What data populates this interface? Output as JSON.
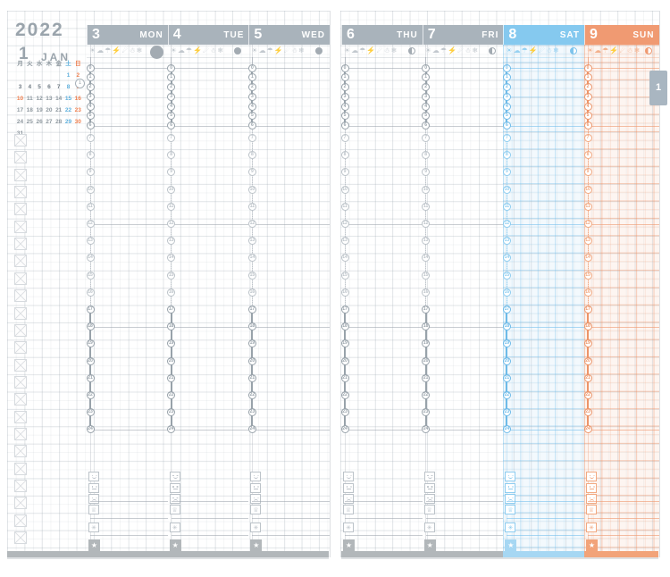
{
  "year": "2022",
  "month_number": "1",
  "month_name": "JAN",
  "week_tab_label": "1",
  "mini_calendar": {
    "day_headers": [
      {
        "label": "月",
        "c": "wd"
      },
      {
        "label": "火",
        "c": "wd"
      },
      {
        "label": "水",
        "c": "wd"
      },
      {
        "label": "木",
        "c": "wd"
      },
      {
        "label": "金",
        "c": "wd"
      },
      {
        "label": "土",
        "c": "sat"
      },
      {
        "label": "日",
        "c": "sun"
      }
    ],
    "weeks": [
      {
        "days": [
          {
            "d": "",
            "c": "wd"
          },
          {
            "d": "",
            "c": "wd"
          },
          {
            "d": "",
            "c": "wd"
          },
          {
            "d": "",
            "c": "wd"
          },
          {
            "d": "",
            "c": "wd"
          },
          {
            "d": "1",
            "c": "sat"
          },
          {
            "d": "2",
            "c": "sun"
          }
        ]
      },
      {
        "current": true,
        "week_label": "1",
        "days": [
          {
            "d": "3",
            "c": "wd"
          },
          {
            "d": "4",
            "c": "wd"
          },
          {
            "d": "5",
            "c": "wd"
          },
          {
            "d": "6",
            "c": "wd"
          },
          {
            "d": "7",
            "c": "wd"
          },
          {
            "d": "8",
            "c": "sat"
          },
          {
            "d": "9",
            "c": "sun"
          }
        ]
      },
      {
        "days": [
          {
            "d": "10",
            "c": "hol"
          },
          {
            "d": "11",
            "c": "wd"
          },
          {
            "d": "12",
            "c": "wd"
          },
          {
            "d": "13",
            "c": "wd"
          },
          {
            "d": "14",
            "c": "wd"
          },
          {
            "d": "15",
            "c": "sat"
          },
          {
            "d": "16",
            "c": "sun"
          }
        ]
      },
      {
        "days": [
          {
            "d": "17",
            "c": "wd"
          },
          {
            "d": "18",
            "c": "wd"
          },
          {
            "d": "19",
            "c": "wd"
          },
          {
            "d": "20",
            "c": "wd"
          },
          {
            "d": "21",
            "c": "wd"
          },
          {
            "d": "22",
            "c": "sat"
          },
          {
            "d": "23",
            "c": "sun"
          }
        ]
      },
      {
        "days": [
          {
            "d": "24",
            "c": "wd"
          },
          {
            "d": "25",
            "c": "wd"
          },
          {
            "d": "26",
            "c": "wd"
          },
          {
            "d": "27",
            "c": "wd"
          },
          {
            "d": "28",
            "c": "wd"
          },
          {
            "d": "29",
            "c": "sat"
          },
          {
            "d": "30",
            "c": "sun"
          }
        ]
      },
      {
        "days": [
          {
            "d": "31",
            "c": "wd"
          },
          {
            "d": "",
            "c": "wd"
          },
          {
            "d": "",
            "c": "wd"
          },
          {
            "d": "",
            "c": "wd"
          },
          {
            "d": "",
            "c": "wd"
          },
          {
            "d": "",
            "c": "sat"
          },
          {
            "d": "",
            "c": "sun"
          }
        ]
      }
    ]
  },
  "checklist": {
    "count": 24
  },
  "days": [
    {
      "num": "3",
      "name": "MON",
      "theme": "gray",
      "moon": {
        "size": "large",
        "fill": "full"
      }
    },
    {
      "num": "4",
      "name": "TUE",
      "theme": "gray",
      "moon": {
        "size": "small",
        "fill": "full"
      }
    },
    {
      "num": "5",
      "name": "WED",
      "theme": "gray",
      "moon": {
        "size": "small",
        "fill": "full"
      }
    },
    {
      "num": "6",
      "name": "THU",
      "theme": "gray",
      "moon": {
        "size": "small",
        "fill": "half"
      }
    },
    {
      "num": "7",
      "name": "FRI",
      "theme": "gray",
      "moon": {
        "size": "small",
        "fill": "half"
      }
    },
    {
      "num": "8",
      "name": "SAT",
      "theme": "sat",
      "moon": {
        "size": "small",
        "fill": "half"
      }
    },
    {
      "num": "9",
      "name": "SUN",
      "theme": "sun",
      "moon": {
        "size": "small",
        "fill": "crescent"
      }
    }
  ],
  "weather_icons": [
    {
      "name": "sun-icon",
      "glyph": "☀"
    },
    {
      "name": "cloud-icon",
      "glyph": "☁"
    },
    {
      "name": "umbrella-icon",
      "glyph": "☂"
    },
    {
      "name": "lightning-icon",
      "glyph": "⚡"
    },
    {
      "name": "wind-icon",
      "glyph": "☄"
    },
    {
      "name": "snowman-icon",
      "glyph": "☃"
    },
    {
      "name": "snowflake-icon",
      "glyph": "❄"
    }
  ],
  "timeline": {
    "compressed_hours": [
      0,
      1,
      2,
      3,
      4,
      5,
      6
    ],
    "regular_hours": [
      7,
      8,
      9,
      10,
      11,
      12,
      13,
      14,
      15,
      16,
      17,
      18,
      19,
      20,
      21,
      22,
      23,
      24
    ],
    "bold_from_hour": 17,
    "rule_hours": [
      0,
      6,
      12,
      18,
      24
    ]
  },
  "bottom_icons": [
    {
      "name": "mood-good-icon",
      "kind": "face",
      "variant": "happy"
    },
    {
      "name": "mood-neutral-icon",
      "kind": "face",
      "variant": "neutral"
    },
    {
      "name": "mood-bad-icon",
      "kind": "face",
      "variant": "sad"
    },
    {
      "name": "crown-icon",
      "kind": "glyph",
      "glyph": "♕"
    },
    {
      "name": "flower-icon",
      "kind": "glyph",
      "glyph": "✳"
    },
    {
      "name": "star-icon",
      "kind": "star",
      "glyph": "★"
    }
  ],
  "colors": {
    "header_gray": "#a9b3bb",
    "header_sat": "#85c9ef",
    "header_sun": "#f09a72",
    "accent_gray": "#bcc3c9",
    "accent_bold_gray": "#98a2aa",
    "accent_sat": "#8ecdf0",
    "accent_bold_sat": "#6ebbe9",
    "accent_sun": "#f2a981",
    "accent_bold_sun": "#ec9468",
    "bar_gray": "#b2b7ba",
    "bar_sat": "#a6d7f3",
    "bar_sun": "#f2a379",
    "moon_gray": "#a3abb2",
    "moon_sat": "#7fc4ec",
    "moon_sun": "#ef9a72",
    "cal_weekday": "#8e989f",
    "cal_sat": "#5fb0dd",
    "cal_sun": "#ef8050",
    "tab_bg": "#a9b6c1"
  }
}
